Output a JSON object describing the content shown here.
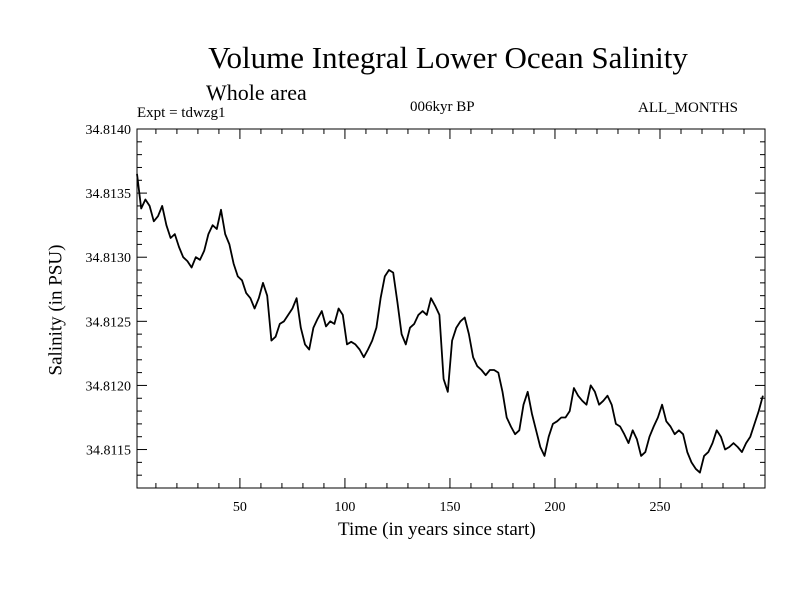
{
  "chart_data": {
    "type": "line",
    "title": "Volume Integral Lower Ocean Salinity",
    "subtitle": "Whole area",
    "expt_label": "Expt = tdwzg1",
    "period_label": "006kyr BP",
    "months_label": "ALL_MONTHS",
    "xlabel": "Time (in years since start)",
    "ylabel": "Salinity (in PSU)",
    "xlim": [
      1,
      300
    ],
    "ylim": [
      34.8112,
      34.814
    ],
    "x_ticks": [
      50,
      100,
      150,
      200,
      250
    ],
    "y_ticks": [
      "34.8115",
      "34.8120",
      "34.8125",
      "34.8130",
      "34.8135",
      "34.8140"
    ],
    "y_tick_values": [
      34.8115,
      34.812,
      34.8125,
      34.813,
      34.8135,
      34.814
    ],
    "series": [
      {
        "name": "Salinity",
        "x": [
          1,
          3,
          5,
          7,
          9,
          11,
          13,
          15,
          17,
          19,
          21,
          23,
          25,
          27,
          29,
          31,
          33,
          35,
          37,
          39,
          41,
          43,
          45,
          47,
          49,
          51,
          53,
          55,
          57,
          59,
          61,
          63,
          65,
          67,
          69,
          71,
          73,
          75,
          77,
          79,
          81,
          83,
          85,
          87,
          89,
          91,
          93,
          95,
          97,
          99,
          101,
          103,
          105,
          107,
          109,
          111,
          113,
          115,
          117,
          119,
          121,
          123,
          125,
          127,
          129,
          131,
          133,
          135,
          137,
          139,
          141,
          143,
          145,
          147,
          149,
          151,
          153,
          155,
          157,
          159,
          161,
          163,
          165,
          167,
          169,
          171,
          173,
          175,
          177,
          179,
          181,
          183,
          185,
          187,
          189,
          191,
          193,
          195,
          197,
          199,
          201,
          203,
          205,
          207,
          209,
          211,
          213,
          215,
          217,
          219,
          221,
          223,
          225,
          227,
          229,
          231,
          233,
          235,
          237,
          239,
          241,
          243,
          245,
          247,
          249,
          251,
          253,
          255,
          257,
          259,
          261,
          263,
          265,
          267,
          269,
          271,
          273,
          275,
          277,
          279,
          281,
          283,
          285,
          287,
          289,
          291,
          293,
          295,
          297,
          299
        ],
        "values": [
          34.81365,
          34.81338,
          34.81345,
          34.8134,
          34.81328,
          34.81332,
          34.8134,
          34.81325,
          34.81315,
          34.81318,
          34.81308,
          34.813,
          34.81297,
          34.81292,
          34.813,
          34.81298,
          34.81305,
          34.81318,
          34.81325,
          34.81322,
          34.81337,
          34.81318,
          34.8131,
          34.81295,
          34.81285,
          34.81282,
          34.81272,
          34.81268,
          34.8126,
          34.81268,
          34.8128,
          34.8127,
          34.81235,
          34.81238,
          34.81248,
          34.8125,
          34.81255,
          34.8126,
          34.81268,
          34.81245,
          34.81232,
          34.81228,
          34.81245,
          34.81252,
          34.81258,
          34.81246,
          34.8125,
          34.81248,
          34.8126,
          34.81255,
          34.81232,
          34.81234,
          34.81232,
          34.81228,
          34.81222,
          34.81228,
          34.81235,
          34.81245,
          34.81268,
          34.81285,
          34.8129,
          34.81288,
          34.81265,
          34.8124,
          34.81232,
          34.81245,
          34.81248,
          34.81255,
          34.81258,
          34.81255,
          34.81268,
          34.81262,
          34.81255,
          34.81205,
          34.81195,
          34.81235,
          34.81245,
          34.8125,
          34.81253,
          34.8124,
          34.81222,
          34.81215,
          34.81212,
          34.81208,
          34.81212,
          34.81212,
          34.8121,
          34.81195,
          34.81175,
          34.81168,
          34.81162,
          34.81165,
          34.81185,
          34.81195,
          34.81178,
          34.81165,
          34.81152,
          34.81145,
          34.8116,
          34.8117,
          34.81172,
          34.81175,
          34.81175,
          34.8118,
          34.81198,
          34.81192,
          34.81188,
          34.81185,
          34.812,
          34.81195,
          34.81185,
          34.81188,
          34.81192,
          34.81185,
          34.8117,
          34.81168,
          34.81162,
          34.81155,
          34.81165,
          34.81158,
          34.81145,
          34.81148,
          34.8116,
          34.81168,
          34.81175,
          34.81185,
          34.81172,
          34.81168,
          34.81162,
          34.81165,
          34.81162,
          34.81148,
          34.8114,
          34.81135,
          34.81132,
          34.81145,
          34.81148,
          34.81155,
          34.81165,
          34.8116,
          34.8115,
          34.81152,
          34.81155,
          34.81152,
          34.81148,
          34.81155,
          34.8116,
          34.8117,
          34.8118,
          34.81192
        ]
      }
    ]
  }
}
